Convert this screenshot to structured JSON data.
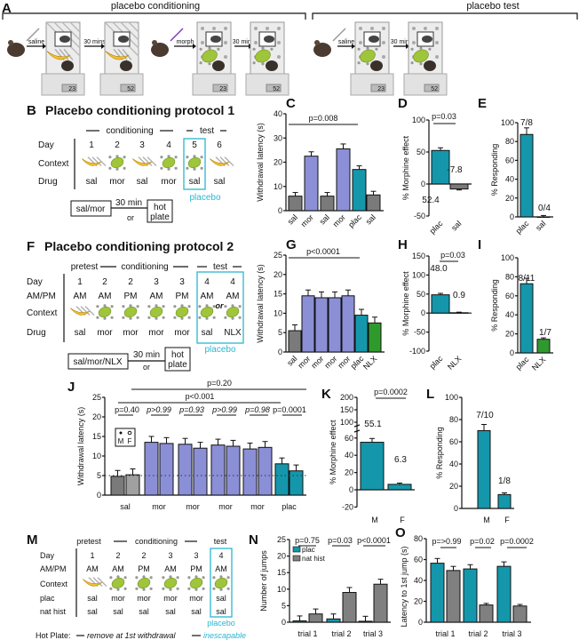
{
  "colors": {
    "sal": "#7a7a7a",
    "sal_f": "#a0a0a0",
    "mor": "#8b8fd6",
    "plac": "#1597ab",
    "nlx": "#2e9a2e",
    "nat_hist": "#808080",
    "test_box": "#29b6d0",
    "morph_text": "#7b3fb8"
  },
  "panel_a": {
    "letter": "A",
    "cond_label": "placebo conditioning",
    "test_label": "placebo test",
    "steps": [
      "saline",
      "30 mins",
      "morph",
      "30 mins",
      "saline",
      "30 mins"
    ],
    "scale_readings": [
      "23",
      "52",
      "23",
      "52",
      "23",
      "52"
    ]
  },
  "panel_b": {
    "letter": "B",
    "title": "Placebo conditioning protocol 1",
    "phase_cond": "conditioning",
    "phase_test": "test",
    "row_labels": [
      "Day",
      "Context",
      "Drug"
    ],
    "days": [
      "1",
      "2",
      "3",
      "4",
      "5",
      "6"
    ],
    "contexts": [
      "banana",
      "lime",
      "banana",
      "lime",
      "lime",
      "banana"
    ],
    "drugs": [
      "sal",
      "mor",
      "sal",
      "mor",
      "sal",
      "sal"
    ],
    "placebo": "placebo",
    "flow_start": "sal/mor",
    "flow_delay": "30 min",
    "flow_or": "or",
    "flow_end_1": "hot",
    "flow_end_2": "plate"
  },
  "panel_f": {
    "letter": "F",
    "title": "Placebo conditioning protocol 2",
    "phase_pre": "pretest",
    "phase_cond": "conditioning",
    "phase_test": "test",
    "row_labels": [
      "Day",
      "AM/PM",
      "Context",
      "Drug"
    ],
    "days": [
      "1",
      "2",
      "2",
      "3",
      "3",
      "4",
      "4"
    ],
    "ampm": [
      "AM",
      "AM",
      "PM",
      "AM",
      "PM",
      "AM",
      "AM"
    ],
    "contexts": [
      "banana",
      "lime",
      "lime",
      "lime",
      "lime",
      "lime",
      "lime"
    ],
    "drugs": [
      "sal",
      "mor",
      "mor",
      "mor",
      "mor",
      "sal",
      "NLX"
    ],
    "or": "or",
    "placebo": "placebo",
    "flow_start": "sal/mor/NLX",
    "flow_delay": "30 min",
    "flow_or": "or",
    "flow_end_1": "hot",
    "flow_end_2": "plate"
  },
  "panel_m": {
    "letter": "M",
    "phase_pre": "pretest",
    "phase_cond": "conditioning",
    "phase_test": "test",
    "row_labels": [
      "Day",
      "AM/PM",
      "Context",
      "plac",
      "nat hist"
    ],
    "days": [
      "1",
      "2",
      "2",
      "3",
      "3",
      "4"
    ],
    "ampm": [
      "AM",
      "AM",
      "PM",
      "AM",
      "PM",
      "AM"
    ],
    "contexts": [
      "banana",
      "lime",
      "lime",
      "lime",
      "lime",
      "lime"
    ],
    "plac": [
      "sal",
      "mor",
      "mor",
      "mor",
      "mor",
      "sal"
    ],
    "nat_hist": [
      "sal",
      "sal",
      "sal",
      "sal",
      "sal",
      "sal"
    ],
    "placebo": "placebo",
    "hot_plate_label": "Hot Plate:",
    "remove_label": "remove at 1st withdrawal",
    "inescapable_label": "inescapable"
  },
  "chart_data": [
    {
      "letter": "C",
      "type": "bar",
      "ylabel": "Withdrawal latency (s)",
      "ylim": [
        0,
        40
      ],
      "ticks": [
        0,
        10,
        20,
        30,
        40
      ],
      "categories": [
        "sal",
        "mor",
        "sal",
        "mor",
        "plac",
        "sal"
      ],
      "values": [
        6,
        22.5,
        6,
        25.5,
        17,
        6.5
      ],
      "color_keys": [
        "sal",
        "mor",
        "sal",
        "mor",
        "plac",
        "sal"
      ],
      "annotations": [
        "p=0.008"
      ]
    },
    {
      "letter": "D",
      "type": "bar",
      "ylabel": "% Morphine effect",
      "ylim": [
        -50,
        100
      ],
      "ticks": [
        -50,
        0,
        50,
        100
      ],
      "categories": [
        "plac",
        "sal"
      ],
      "values": [
        52.4,
        -7.8
      ],
      "color_keys": [
        "plac",
        "sal"
      ],
      "value_labels": [
        "52.4",
        "-7.8"
      ],
      "annotations": [
        "p=0.03"
      ]
    },
    {
      "letter": "E",
      "type": "bar",
      "ylabel": "% Responding",
      "ylim": [
        0,
        100
      ],
      "ticks": [
        0,
        20,
        40,
        60,
        80,
        100
      ],
      "categories": [
        "plac",
        "sal"
      ],
      "values": [
        87.5,
        0
      ],
      "color_keys": [
        "plac",
        "sal"
      ],
      "value_labels": [
        "7/8",
        "0/4"
      ]
    },
    {
      "letter": "G",
      "type": "bar",
      "ylabel": "Withdrawal latency (s)",
      "ylim": [
        0,
        25
      ],
      "ticks": [
        0,
        5,
        10,
        15,
        20,
        25
      ],
      "categories": [
        "sal",
        "mor",
        "mor",
        "mor",
        "mor",
        "plac",
        "NLX"
      ],
      "values": [
        5.5,
        14.5,
        14,
        14,
        14.5,
        9.5,
        7.5
      ],
      "color_keys": [
        "sal",
        "mor",
        "mor",
        "mor",
        "mor",
        "plac",
        "nlx"
      ],
      "annotations": [
        "p<0.0001"
      ]
    },
    {
      "letter": "H",
      "type": "bar",
      "ylabel": "% Morphine effect",
      "ylim": [
        -100,
        150
      ],
      "ticks": [
        -100,
        -50,
        0,
        50,
        100,
        150
      ],
      "categories": [
        "plac",
        "NLX"
      ],
      "values": [
        48.0,
        0.9
      ],
      "color_keys": [
        "plac",
        "nlx"
      ],
      "value_labels": [
        "48.0",
        "0.9"
      ],
      "annotations": [
        "p=0.03"
      ]
    },
    {
      "letter": "I",
      "type": "bar",
      "ylabel": "% Responding",
      "ylim": [
        0,
        100
      ],
      "ticks": [
        0,
        20,
        40,
        60,
        80,
        100
      ],
      "categories": [
        "plac",
        "NLX"
      ],
      "values": [
        72.7,
        14.3
      ],
      "color_keys": [
        "plac",
        "nlx"
      ],
      "value_labels": [
        "8/11",
        "1/7"
      ]
    },
    {
      "letter": "J",
      "type": "bar",
      "ylabel": "Withdrawal latency (s)",
      "ylim": [
        0,
        25
      ],
      "ticks": [
        0,
        5,
        10,
        15,
        20,
        25
      ],
      "categories": [
        "sal",
        "mor",
        "mor",
        "mor",
        "mor",
        "plac"
      ],
      "series": [
        {
          "name": "M",
          "values": [
            4.8,
            13.5,
            13,
            12.8,
            11.8,
            8
          ]
        },
        {
          "name": "F",
          "values": [
            5.2,
            13.2,
            12,
            12.5,
            12.2,
            6.2
          ]
        }
      ],
      "color_keys": [
        "sal",
        "mor",
        "mor",
        "mor",
        "mor",
        "plac"
      ],
      "reference_line": 5,
      "annotations": [
        "p=0.20",
        "p<0.001",
        "p=0.40",
        "p>0.99",
        "p=0.93",
        "p>0.99",
        "p=0.98",
        "p=0.0001"
      ],
      "legend": [
        "M",
        "F"
      ]
    },
    {
      "letter": "K",
      "type": "bar",
      "ylabel": "% Morphine effect",
      "ylim": [
        -20,
        200
      ],
      "ticks": [
        -20,
        0,
        20,
        40,
        60,
        100,
        150,
        200
      ],
      "categories": [
        "M",
        "F"
      ],
      "values": [
        55.1,
        6.3
      ],
      "color_keys": [
        "plac",
        "plac"
      ],
      "value_labels": [
        "55.1",
        "6.3"
      ],
      "annotations": [
        "p=0.0002"
      ]
    },
    {
      "letter": "L",
      "type": "bar",
      "ylabel": "% Responding",
      "ylim": [
        0,
        100
      ],
      "ticks": [
        0,
        20,
        40,
        60,
        80,
        100
      ],
      "categories": [
        "M",
        "F"
      ],
      "values": [
        70,
        12.5
      ],
      "color_keys": [
        "plac",
        "plac"
      ],
      "value_labels": [
        "7/10",
        "1/8"
      ]
    },
    {
      "letter": "N",
      "type": "bar",
      "ylabel": "Number of jumps",
      "ylim": [
        0,
        25
      ],
      "ticks": [
        0,
        5,
        10,
        15,
        20,
        25
      ],
      "categories": [
        "trial 1",
        "trial 2",
        "trial 3"
      ],
      "series": [
        {
          "name": "plac",
          "values": [
            0.4,
            1.0,
            0.3
          ]
        },
        {
          "name": "nat hist",
          "values": [
            2.5,
            9,
            11.5
          ]
        }
      ],
      "legend": [
        "plac",
        "nat hist"
      ],
      "annotations": [
        "p=0.75",
        "p=0.03",
        "p<0.0001"
      ]
    },
    {
      "letter": "O",
      "type": "bar",
      "ylabel": "Latency to 1st jump (s)",
      "ylim": [
        0,
        80
      ],
      "ticks": [
        0,
        20,
        40,
        60,
        80
      ],
      "categories": [
        "trial 1",
        "trial 2",
        "trial 3"
      ],
      "series": [
        {
          "name": "plac",
          "values": [
            56.5,
            51,
            53.5
          ]
        },
        {
          "name": "nat hist",
          "values": [
            49.5,
            16.5,
            15.5
          ]
        }
      ],
      "annotations": [
        "p=>0.99",
        "p=0.02",
        "p=0.0002"
      ]
    }
  ]
}
